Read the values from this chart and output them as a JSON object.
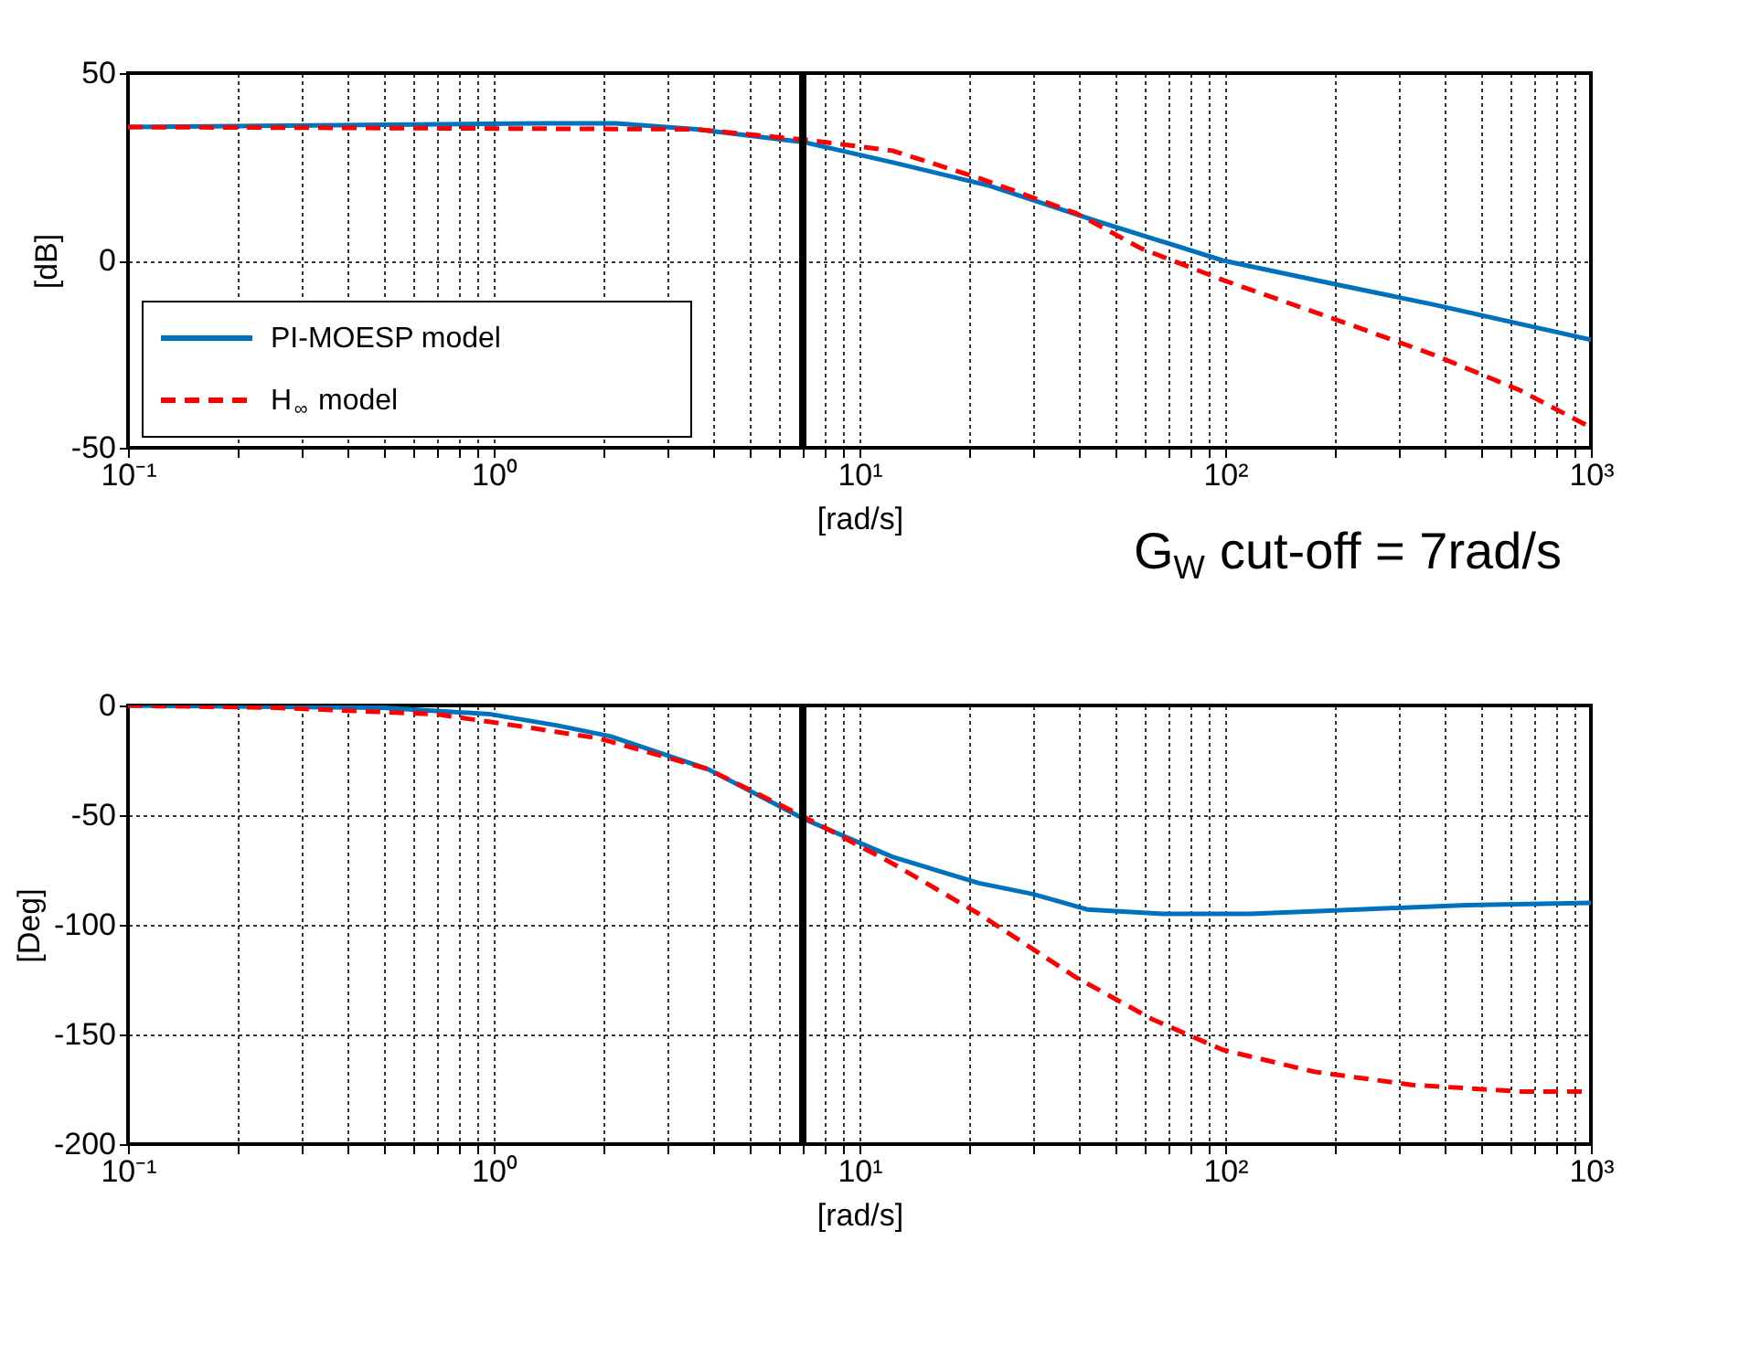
{
  "chart_data": [
    {
      "type": "line",
      "ylabel": "[dB]",
      "xlabel": "[rad/s]",
      "log": "x",
      "grid": true,
      "legend": "bottom left",
      "xlim": [
        0.1,
        1000
      ],
      "ylim": [
        -50,
        50
      ],
      "yticks": [
        -50,
        0,
        50
      ],
      "xticks": [
        {
          "value": 0.1,
          "label": "10⁻¹"
        },
        {
          "value": 0.2,
          "label": null
        },
        {
          "value": 0.3,
          "label": null
        },
        {
          "value": 0.4,
          "label": null
        },
        {
          "value": 0.5,
          "label": null
        },
        {
          "value": 0.6,
          "label": null
        },
        {
          "value": 0.7,
          "label": null
        },
        {
          "value": 0.8,
          "label": null
        },
        {
          "value": 0.9,
          "label": null
        },
        {
          "value": 1,
          "label": "10⁰"
        },
        {
          "value": 2,
          "label": null
        },
        {
          "value": 3,
          "label": null
        },
        {
          "value": 4,
          "label": null
        },
        {
          "value": 5,
          "label": null
        },
        {
          "value": 6,
          "label": null
        },
        {
          "value": 7,
          "label": null
        },
        {
          "value": 8,
          "label": null
        },
        {
          "value": 9,
          "label": null
        },
        {
          "value": 10,
          "label": "10¹"
        },
        {
          "value": 20,
          "label": null
        },
        {
          "value": 30,
          "label": null
        },
        {
          "value": 40,
          "label": null
        },
        {
          "value": 50,
          "label": null
        },
        {
          "value": 60,
          "label": null
        },
        {
          "value": 70,
          "label": null
        },
        {
          "value": 80,
          "label": null
        },
        {
          "value": 90,
          "label": null
        },
        {
          "value": 100,
          "label": "10²"
        },
        {
          "value": 200,
          "label": null
        },
        {
          "value": 300,
          "label": null
        },
        {
          "value": 400,
          "label": null
        },
        {
          "value": 500,
          "label": null
        },
        {
          "value": 600,
          "label": null
        },
        {
          "value": 700,
          "label": null
        },
        {
          "value": 800,
          "label": null
        },
        {
          "value": 900,
          "label": null
        },
        {
          "value": 1000,
          "label": "10³"
        }
      ],
      "series": [
        {
          "name": "PI-MOESP model",
          "color": "#0072bd",
          "line_style": "solid",
          "x": [
            0.1,
            1.34,
            2.16,
            3.59,
            7.1,
            12.3,
            22.7,
            44.9,
            98.4,
            201,
            372,
            1000
          ],
          "values": [
            35.6,
            36.6,
            36.6,
            35,
            31.5,
            26.2,
            19.9,
            10.4,
            0,
            -6.4,
            -11.8,
            -21.2
          ]
        },
        {
          "name": "H$_{∞}$ model",
          "color": "#ff0000",
          "line_style": "dashed",
          "x": [
            0.1,
            3.59,
            7.1,
            12.3,
            21.2,
            39.1,
            58.9,
            98.4,
            201,
            372,
            641,
            1000
          ],
          "values": [
            35.6,
            35,
            32.2,
            29.3,
            22,
            12.6,
            3.2,
            -5.2,
            -15.8,
            -25.2,
            -34.7,
            -44.6
          ]
        }
      ],
      "ref_lines": [
        {
          "axis": "x",
          "value": 7,
          "label": null
        }
      ],
      "annotations": [
        "G$_{W}$ cut-off = 7rad/s"
      ]
    },
    {
      "type": "line",
      "ylabel": "[Deg]",
      "xlabel": "[rad/s]",
      "log": "x",
      "grid": true,
      "legend": false,
      "xlim": [
        0.1,
        1000
      ],
      "ylim": [
        -200,
        0
      ],
      "yticks": [
        -200,
        -150,
        -100,
        -50,
        0
      ],
      "xticks": [
        {
          "value": 0.1,
          "label": "10⁻¹"
        },
        {
          "value": 0.2,
          "label": null
        },
        {
          "value": 0.3,
          "label": null
        },
        {
          "value": 0.4,
          "label": null
        },
        {
          "value": 0.5,
          "label": null
        },
        {
          "value": 0.6,
          "label": null
        },
        {
          "value": 0.7,
          "label": null
        },
        {
          "value": 0.8,
          "label": null
        },
        {
          "value": 0.9,
          "label": null
        },
        {
          "value": 1,
          "label": "10⁰"
        },
        {
          "value": 2,
          "label": null
        },
        {
          "value": 3,
          "label": null
        },
        {
          "value": 4,
          "label": null
        },
        {
          "value": 5,
          "label": null
        },
        {
          "value": 6,
          "label": null
        },
        {
          "value": 7,
          "label": null
        },
        {
          "value": 8,
          "label": null
        },
        {
          "value": 9,
          "label": null
        },
        {
          "value": 10,
          "label": "10¹"
        },
        {
          "value": 20,
          "label": null
        },
        {
          "value": 30,
          "label": null
        },
        {
          "value": 40,
          "label": null
        },
        {
          "value": 50,
          "label": null
        },
        {
          "value": 60,
          "label": null
        },
        {
          "value": 70,
          "label": null
        },
        {
          "value": 80,
          "label": null
        },
        {
          "value": 90,
          "label": null
        },
        {
          "value": 100,
          "label": "10²"
        },
        {
          "value": 200,
          "label": null
        },
        {
          "value": 300,
          "label": null
        },
        {
          "value": 400,
          "label": null
        },
        {
          "value": 500,
          "label": null
        },
        {
          "value": 600,
          "label": null
        },
        {
          "value": 700,
          "label": null
        },
        {
          "value": 800,
          "label": null
        },
        {
          "value": 900,
          "label": null
        },
        {
          "value": 1000,
          "label": "10³"
        }
      ],
      "series": [
        {
          "color": "#0072bd",
          "line_style": "solid",
          "x": [
            0.1,
            0.497,
            0.98,
            1.48,
            2.08,
            3.85,
            7.1,
            12.3,
            21.2,
            29.8,
            41.9,
            67.6,
            117,
            231,
            456,
            1000
          ],
          "values": [
            0,
            -1,
            -4,
            -9,
            -14,
            -29,
            -52,
            -69,
            -81,
            -86,
            -93,
            -95,
            -95,
            -93,
            -91,
            -90
          ]
        },
        {
          "color": "#ff0000",
          "line_style": "dashed",
          "x": [
            0.1,
            0.251,
            0.698,
            1.13,
            1.94,
            3.85,
            7.1,
            12.3,
            21.2,
            39.1,
            63.1,
            98.4,
            175,
            324,
            641,
            1000
          ],
          "values": [
            0,
            -1,
            -4,
            -9,
            -15,
            -29,
            -51,
            -72,
            -95,
            -124,
            -143,
            -157,
            -167,
            -173,
            -176,
            -176
          ]
        }
      ],
      "ref_lines": [
        {
          "axis": "x",
          "value": 7,
          "label": null
        }
      ]
    }
  ]
}
